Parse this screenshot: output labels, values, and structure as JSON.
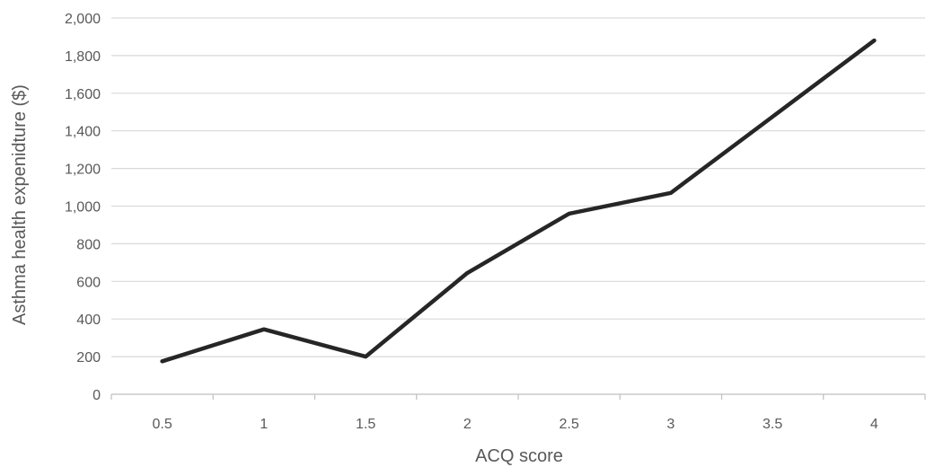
{
  "chart_data": {
    "type": "line",
    "title": "",
    "xlabel": "ACQ score",
    "ylabel": "Asthma health expenidture ($)",
    "categories": [
      "0.5",
      "1",
      "1.5",
      "2",
      "2.5",
      "3",
      "3.5",
      "4"
    ],
    "y_ticks": [
      "0",
      "200",
      "400",
      "600",
      "800",
      "1,000",
      "1,200",
      "1,400",
      "1,600",
      "1,800",
      "2,000"
    ],
    "ylim": [
      0,
      2000
    ],
    "grid": true,
    "legend": "none",
    "series": [
      {
        "values": [
          175,
          345,
          200,
          645,
          960,
          1070,
          1475,
          1880
        ]
      }
    ]
  },
  "colors": {
    "line": "#262626",
    "grid": "#d9d9d9",
    "axis": "#bfbfbf",
    "text": "#595959"
  }
}
